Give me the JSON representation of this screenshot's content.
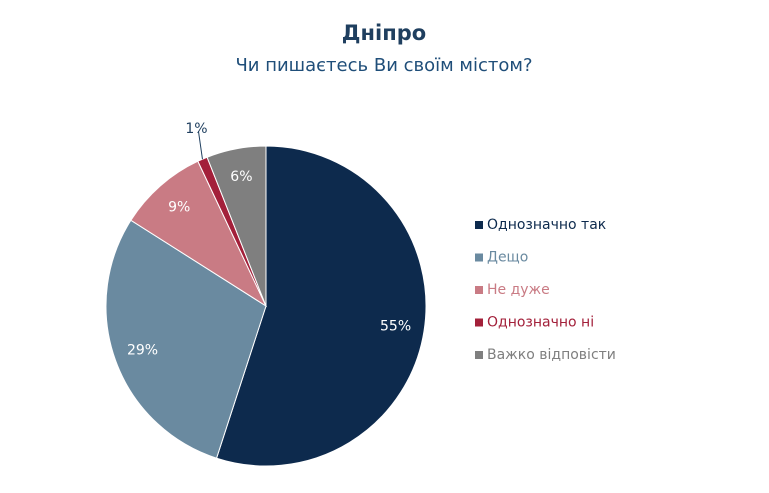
{
  "chart_data": {
    "type": "pie",
    "title": "Дніпро",
    "subtitle": "Чи пишаєтесь Ви своїм містом?",
    "categories": [
      "Однозначно так",
      "Дещо",
      "Не дуже",
      "Однозначно ні",
      "Важко відповісти"
    ],
    "values": [
      55,
      29,
      9,
      1,
      6
    ],
    "value_labels": [
      "55%",
      "29%",
      "9%",
      "1%",
      "6%"
    ],
    "colors": [
      "#0d2a4d",
      "#6a8aa0",
      "#c97b84",
      "#a3203a",
      "#7f7f7f"
    ],
    "legend": "right"
  }
}
